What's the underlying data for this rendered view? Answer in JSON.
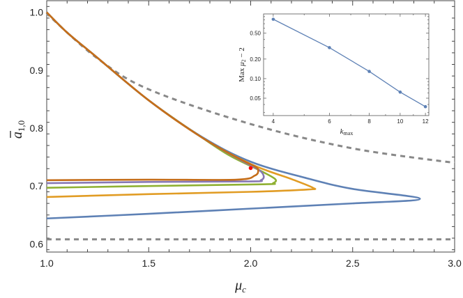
{
  "chart_data": [
    {
      "type": "line",
      "xlabel": "μ_c",
      "ylabel": "ā_{1,0}",
      "xlim": [
        1.0,
        3.0
      ],
      "ylim": [
        0.586,
        1.02
      ],
      "x_ticks": [
        "1.0",
        "1.5",
        "2.0",
        "2.5",
        "3.0"
      ],
      "y_ticks": [
        "0.6",
        "0.7",
        "0.8",
        "0.9",
        "1.0"
      ],
      "x_tick_values": [
        1.0,
        1.5,
        2.0,
        2.5,
        3.0
      ],
      "y_tick_values": [
        0.6,
        0.7,
        0.8,
        0.9,
        1.0
      ],
      "grid": false,
      "series": [
        {
          "color": "#5E81B5",
          "points": [
            [
              1,
              1
            ],
            [
              1.1,
              0.965
            ],
            [
              1.24,
              0.924
            ],
            [
              1.5,
              0.848
            ],
            [
              1.76,
              0.785
            ],
            [
              2.0,
              0.742
            ],
            [
              2.28,
              0.713
            ],
            [
              2.5,
              0.695
            ],
            [
              2.83,
              0.678
            ],
            [
              2.5,
              0.67
            ],
            [
              2.0,
              0.661
            ],
            [
              1.5,
              0.652
            ],
            [
              1.0,
              0.644
            ]
          ]
        },
        {
          "color": "#E19C24",
          "points": [
            [
              1,
              1
            ],
            [
              1.1,
              0.965
            ],
            [
              1.24,
              0.924
            ],
            [
              1.5,
              0.848
            ],
            [
              1.76,
              0.784
            ],
            [
              2.0,
              0.738
            ],
            [
              2.2,
              0.712
            ],
            [
              2.305,
              0.697
            ],
            [
              2.28,
              0.694
            ],
            [
              2.0,
              0.69
            ],
            [
              1.5,
              0.686
            ],
            [
              1.0,
              0.681
            ]
          ]
        },
        {
          "color": "#8FB032",
          "points": [
            [
              1,
              1
            ],
            [
              1.1,
              0.965
            ],
            [
              1.24,
              0.924
            ],
            [
              1.5,
              0.848
            ],
            [
              1.76,
              0.784
            ],
            [
              1.9,
              0.752
            ],
            [
              2.05,
              0.726
            ],
            [
              2.12,
              0.712
            ],
            [
              2.11,
              0.705
            ],
            [
              2.06,
              0.703
            ],
            [
              1.5,
              0.7
            ],
            [
              1.0,
              0.697
            ]
          ]
        },
        {
          "color": "#8778B3",
          "points": [
            [
              1,
              1
            ],
            [
              1.1,
              0.965
            ],
            [
              1.24,
              0.924
            ],
            [
              1.5,
              0.848
            ],
            [
              1.76,
              0.784
            ],
            [
              1.95,
              0.745
            ],
            [
              2.04,
              0.728
            ],
            [
              2.064,
              0.717
            ],
            [
              2.05,
              0.71
            ],
            [
              2.0,
              0.708
            ],
            [
              1.5,
              0.707
            ],
            [
              1.0,
              0.705
            ]
          ]
        },
        {
          "color": "#C56E1A",
          "points": [
            [
              1,
              1
            ],
            [
              1.1,
              0.965
            ],
            [
              1.24,
              0.924
            ],
            [
              1.5,
              0.848
            ],
            [
              1.76,
              0.784
            ],
            [
              1.95,
              0.746
            ],
            [
              2.02,
              0.734
            ],
            [
              2.037,
              0.727
            ],
            [
              2.02,
              0.718
            ],
            [
              1.93,
              0.711
            ],
            [
              1.5,
              0.711
            ],
            [
              1.0,
              0.71
            ]
          ]
        },
        {
          "color": "#888888",
          "style": "dashed",
          "points": [
            [
              1.0,
              1.0
            ],
            [
              1.03,
              0.988
            ],
            [
              1.25,
              0.92
            ],
            [
              1.5,
              0.867
            ],
            [
              2.0,
              0.807
            ],
            [
              2.5,
              0.765
            ],
            [
              3.0,
              0.74
            ]
          ]
        },
        {
          "color": "#888888",
          "style": "dashed",
          "points": [
            [
              1.0,
              0.608
            ],
            [
              3.0,
              0.608
            ]
          ]
        }
      ],
      "marker": {
        "color": "#FF0000",
        "point": [
          2.0,
          0.731
        ]
      }
    },
    {
      "type": "line",
      "xlabel": "k_max",
      "ylabel": "Max μ₂ − 2",
      "x_scale": "log",
      "y_scale": "log",
      "xlim": [
        3.73,
        12.3
      ],
      "ylim": [
        0.027,
        0.99
      ],
      "x_ticks": [
        "4",
        "6",
        "8",
        "10",
        "12"
      ],
      "x_tick_values": [
        4,
        6,
        8,
        10,
        12
      ],
      "y_ticks": [
        "0.05",
        "0.10",
        "0.20",
        "0.50"
      ],
      "y_tick_values": [
        0.05,
        0.1,
        0.2,
        0.5
      ],
      "x": [
        4,
        6,
        8,
        10,
        12
      ],
      "values": [
        0.82,
        0.3,
        0.129,
        0.062,
        0.037
      ],
      "color": "#5E81B5",
      "legend_placement": "inset top-right"
    }
  ]
}
